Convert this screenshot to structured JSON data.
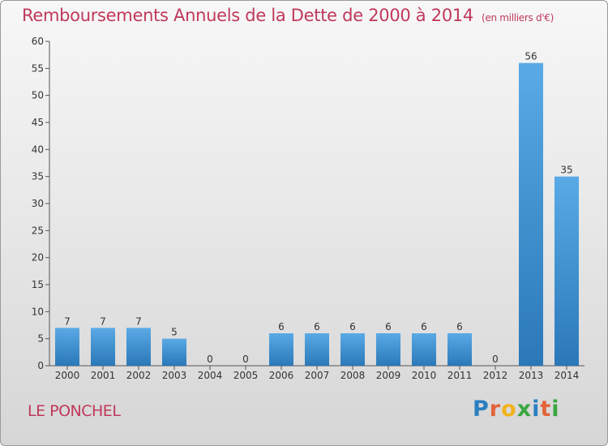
{
  "header": {
    "title": "Remboursements Annuels de la Dette de 2000 à 2014",
    "subtitle": "(en milliers d'€)"
  },
  "footer": {
    "commune": "LE PONCHEL",
    "logo_letters": [
      "P",
      "r",
      "o",
      "x",
      "i",
      "t",
      "i"
    ],
    "logo_colors": [
      "#2a7fc0",
      "#e3643a",
      "#f2b31c",
      "#3aa63f",
      "#2a7fc0",
      "#e3643a",
      "#3aa63f"
    ]
  },
  "chart_data": {
    "type": "bar",
    "categories": [
      "2000",
      "2001",
      "2002",
      "2003",
      "2004",
      "2005",
      "2006",
      "2007",
      "2008",
      "2009",
      "2010",
      "2011",
      "2012",
      "2013",
      "2014"
    ],
    "values": [
      7,
      7,
      7,
      5,
      0,
      0,
      6,
      6,
      6,
      6,
      6,
      6,
      0,
      56,
      35
    ],
    "title": "Remboursements Annuels de la Dette de 2000 à 2014",
    "xlabel": "",
    "ylabel": "",
    "ylim": [
      0,
      60
    ],
    "yticks": [
      0,
      5,
      10,
      15,
      20,
      25,
      30,
      35,
      40,
      45,
      50,
      55,
      60
    ],
    "grid": false,
    "bar_color_top": "#5aaae6",
    "bar_color_bottom": "#2a78b8"
  }
}
